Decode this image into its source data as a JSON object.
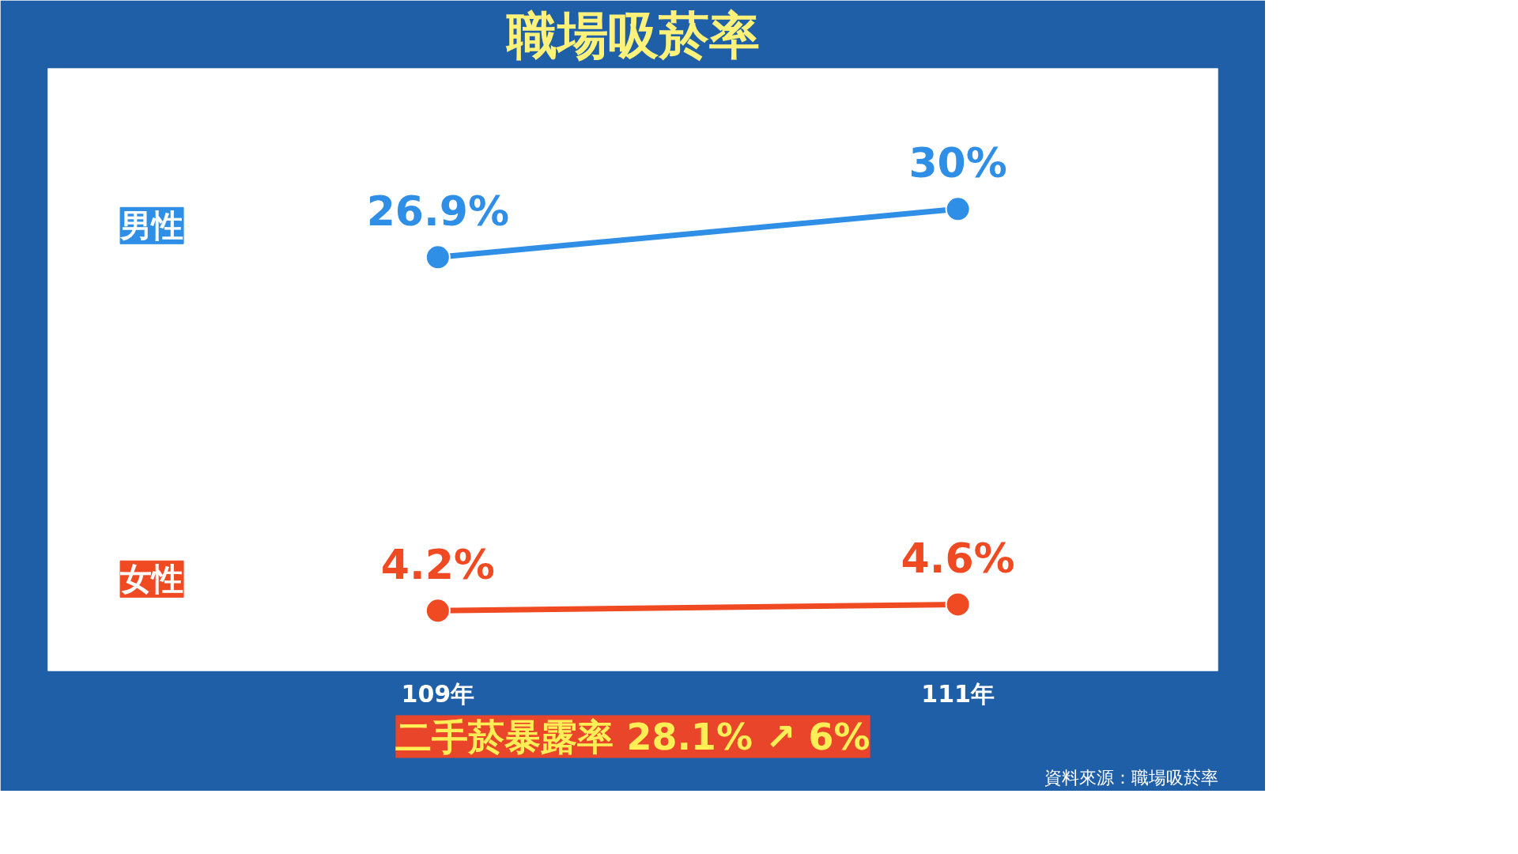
{
  "chart_data": {
    "type": "line",
    "title": "職場吸菸率",
    "categories": [
      "109年",
      "111年"
    ],
    "series": [
      {
        "name": "男性",
        "color": "#2f8fe6",
        "values": [
          26.9,
          30
        ],
        "value_labels": [
          "26.9%",
          "30%"
        ]
      },
      {
        "name": "女性",
        "color": "#f04a23",
        "values": [
          4.2,
          4.6
        ],
        "value_labels": [
          "4.2%",
          "4.6%"
        ]
      }
    ],
    "marker": "circle",
    "line_style": "solid",
    "tick_labels": "x",
    "annotations": [
      "二手菸暴露率 28.1% ↗ 6%",
      "資料來源：職場吸菸率"
    ]
  }
}
